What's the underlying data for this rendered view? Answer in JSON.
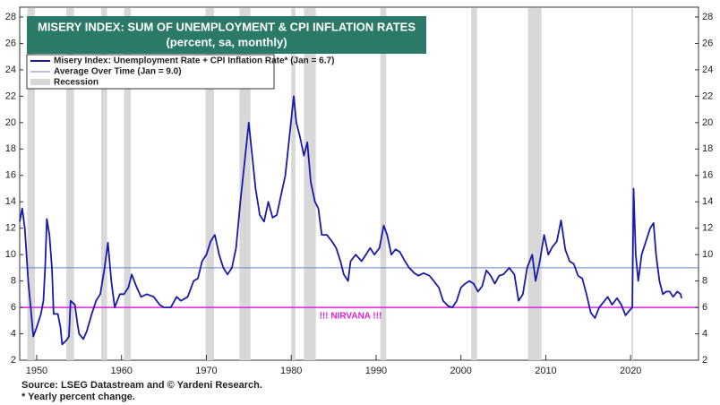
{
  "chart_data": {
    "type": "line",
    "title": "MISERY INDEX: SUM OF UNEMPLOYMENT & CPI INFLATION RATES",
    "subtitle": "(percent, sa, monthly)",
    "xlim": [
      1948,
      2028
    ],
    "xticks": [
      1950,
      1960,
      1970,
      1980,
      1990,
      2000,
      2010,
      2020
    ],
    "ylim": [
      2,
      28
    ],
    "yticks": [
      2,
      4,
      6,
      8,
      10,
      12,
      14,
      16,
      18,
      20,
      22,
      24,
      26,
      28
    ],
    "grid": false,
    "legend": "upper left",
    "series": [
      {
        "name": "Misery Index: Unemployment Rate + CPI Inflation Rate* (Jan = 6.7)",
        "color": "#1a1aa8",
        "x": [
          1948.0,
          1948.3,
          1948.6,
          1949.0,
          1949.3,
          1949.6,
          1950.0,
          1950.5,
          1950.8,
          1951.0,
          1951.2,
          1951.5,
          1951.8,
          1952.0,
          1952.5,
          1952.8,
          1953.0,
          1953.5,
          1953.8,
          1954.0,
          1954.5,
          1954.8,
          1955.0,
          1955.5,
          1955.9,
          1956.5,
          1957.0,
          1957.5,
          1958.0,
          1958.4,
          1958.8,
          1959.2,
          1959.8,
          1960.3,
          1960.8,
          1961.2,
          1961.8,
          1962.3,
          1963.0,
          1963.8,
          1964.5,
          1965.0,
          1965.8,
          1966.5,
          1967.0,
          1967.8,
          1968.5,
          1969.0,
          1969.5,
          1970.0,
          1970.5,
          1971.0,
          1971.5,
          1972.0,
          1972.5,
          1973.0,
          1973.5,
          1974.0,
          1974.5,
          1975.0,
          1975.4,
          1975.8,
          1976.3,
          1976.8,
          1977.3,
          1977.8,
          1978.3,
          1978.8,
          1979.3,
          1979.8,
          1980.3,
          1980.6,
          1981.0,
          1981.5,
          1981.9,
          1982.3,
          1982.8,
          1983.2,
          1983.6,
          1984.2,
          1984.8,
          1985.3,
          1985.8,
          1986.2,
          1986.7,
          1987.0,
          1987.6,
          1988.3,
          1988.8,
          1989.3,
          1989.8,
          1990.4,
          1990.9,
          1991.3,
          1991.8,
          1992.3,
          1992.8,
          1993.4,
          1993.9,
          1994.5,
          1995.0,
          1995.6,
          1996.3,
          1996.8,
          1997.4,
          1997.9,
          1998.5,
          1999.0,
          1999.5,
          2000.0,
          2000.5,
          2001.0,
          2001.5,
          2002.0,
          2002.5,
          2003.0,
          2003.5,
          2004.0,
          2004.5,
          2005.0,
          2005.7,
          2006.3,
          2006.8,
          2007.3,
          2007.8,
          2008.4,
          2008.8,
          2009.3,
          2009.8,
          2010.3,
          2010.8,
          2011.3,
          2011.8,
          2012.3,
          2012.8,
          2013.3,
          2013.8,
          2014.3,
          2014.8,
          2015.3,
          2015.8,
          2016.3,
          2016.8,
          2017.3,
          2017.8,
          2018.4,
          2018.9,
          2019.4,
          2019.9,
          2020.2,
          2020.35,
          2020.6,
          2020.9,
          2021.3,
          2021.8,
          2022.3,
          2022.7,
          2023.0,
          2023.4,
          2023.8,
          2024.2,
          2024.6,
          2025.0,
          2025.5,
          2025.9,
          2026.0
        ],
        "values": [
          12.5,
          13.5,
          12.0,
          8,
          6,
          3.8,
          4.5,
          5.5,
          6.5,
          9,
          12.7,
          11.5,
          9,
          5.5,
          5.5,
          4.5,
          3.2,
          3.5,
          3.8,
          6.5,
          6.2,
          4.8,
          4,
          3.6,
          4.2,
          5.5,
          6.5,
          7,
          9,
          10.9,
          8,
          6,
          7,
          7,
          7.5,
          8.5,
          7.5,
          6.8,
          7,
          6.8,
          6.2,
          6,
          6,
          6.8,
          6.5,
          6.8,
          8,
          8.2,
          9.5,
          10,
          11,
          11.5,
          10,
          9,
          8.5,
          9,
          10.5,
          14,
          17,
          20,
          17.5,
          15,
          13,
          12.5,
          14,
          12.8,
          13,
          14.5,
          16,
          19,
          22,
          20,
          19,
          17.5,
          18.5,
          15.5,
          14,
          13.5,
          11.5,
          11.5,
          11,
          10.5,
          9.5,
          8.5,
          8,
          9.5,
          10,
          9.5,
          10,
          10.5,
          10,
          10.5,
          12.2,
          11.5,
          10,
          10.4,
          10.2,
          9.5,
          9,
          8.6,
          8.4,
          8.6,
          8.4,
          8,
          7.5,
          6.5,
          6.1,
          6,
          6.5,
          7.5,
          7.8,
          8,
          7.8,
          7.2,
          7.6,
          8.8,
          8.4,
          7.8,
          8.4,
          8.5,
          9,
          8.5,
          6.5,
          7,
          9,
          10,
          8,
          9.5,
          11.5,
          10,
          10.6,
          11,
          12.6,
          10.4,
          9.5,
          9.3,
          8.4,
          8.2,
          7,
          5.6,
          5.2,
          6,
          6.4,
          6.8,
          6.2,
          6.7,
          6.2,
          5.4,
          5.8,
          6,
          15,
          10,
          8,
          10,
          11,
          12,
          12.4,
          10,
          8,
          7,
          7.2,
          7.2,
          6.8,
          7.2,
          7,
          6.7
        ]
      }
    ],
    "reference_lines": [
      {
        "name": "Average Over Time (Jan = 9.0)",
        "value": 9.0,
        "color": "#6f7fc8"
      },
      {
        "label": "!!! NIRVANA !!!",
        "value": 6,
        "color": "#e020e0"
      }
    ],
    "recession_name": "Recession",
    "recession_color": "#d8d8d8",
    "recessions": [
      [
        1948.9,
        1949.8
      ],
      [
        1953.5,
        1954.4
      ],
      [
        1957.6,
        1958.3
      ],
      [
        1960.3,
        1961.1
      ],
      [
        1969.9,
        1970.9
      ],
      [
        1973.9,
        1975.2
      ],
      [
        1980.0,
        1980.5
      ],
      [
        1981.5,
        1982.9
      ],
      [
        1990.5,
        1991.2
      ],
      [
        2001.2,
        2001.9
      ],
      [
        2007.9,
        2009.5
      ],
      [
        2020.1,
        2020.3
      ]
    ],
    "source": "Source: LSEG Datastream and © Yardeni Research.",
    "note": "* Yearly percent change."
  }
}
